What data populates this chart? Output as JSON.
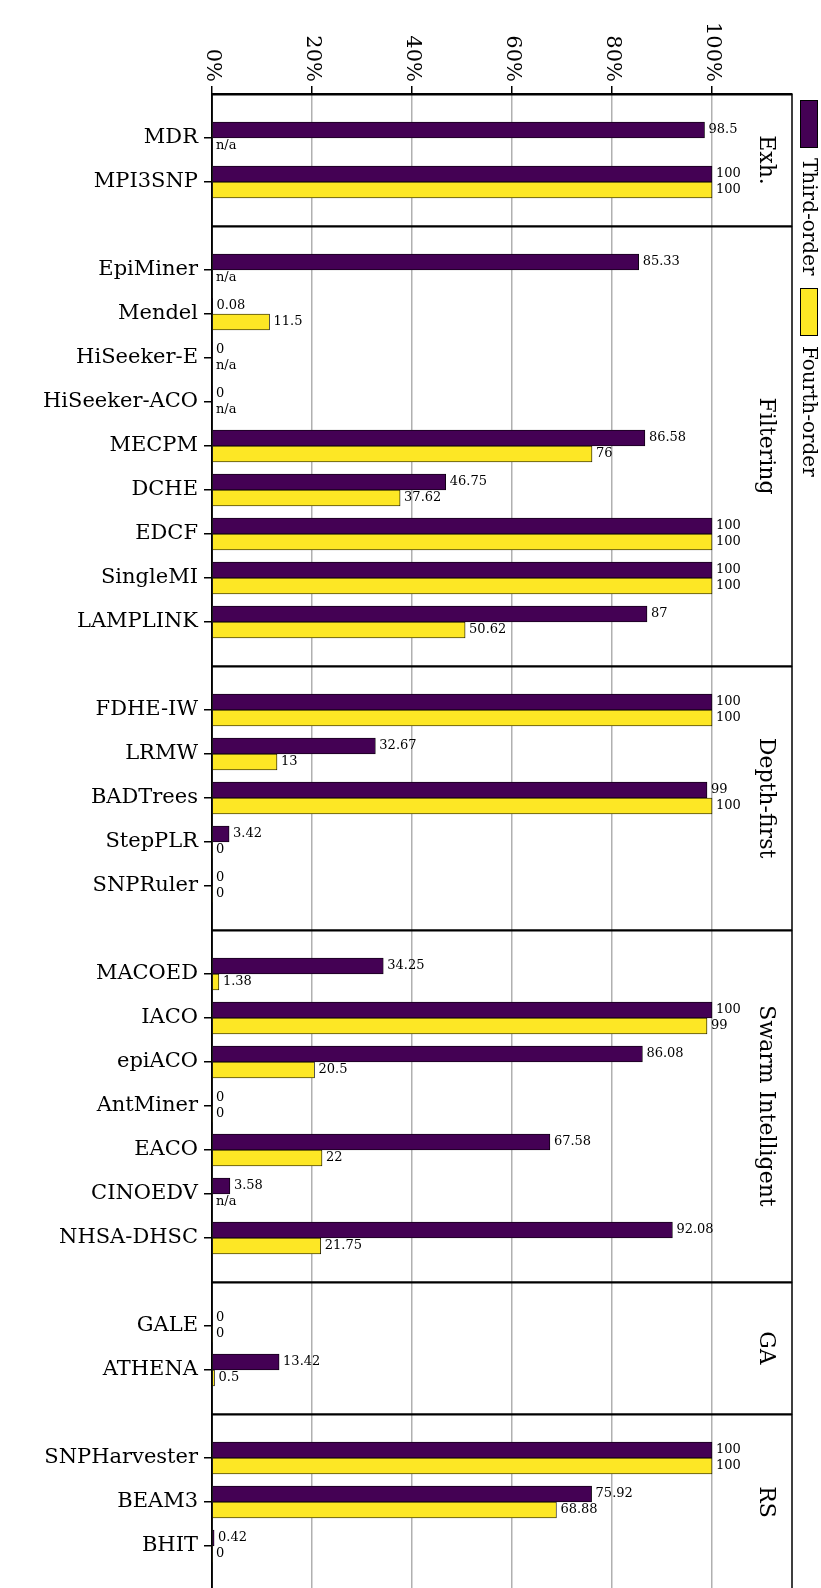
{
  "chart_data": [
    {
      "type": "bar",
      "orientation": "horizontal",
      "title": "Exh.",
      "categories": [
        "MDR",
        "MPI3SNP"
      ],
      "series": [
        {
          "name": "Third-order",
          "color": "#440154",
          "values": [
            98.5,
            100
          ],
          "value_labels": [
            "98.5",
            "100"
          ]
        },
        {
          "name": "Fourth-order",
          "color": "#fde725",
          "values": [
            null,
            100
          ],
          "value_labels": [
            "n/a",
            "100"
          ]
        }
      ],
      "xlim": [
        0,
        116
      ],
      "xticks": [
        {
          "value": 0,
          "label": "0%"
        },
        {
          "value": 20,
          "label": "20%"
        },
        {
          "value": 40,
          "label": "40%"
        },
        {
          "value": 60,
          "label": "60%"
        },
        {
          "value": 80,
          "label": "80%"
        },
        {
          "value": 100,
          "label": "100%"
        }
      ],
      "grid": "x",
      "legend": "right"
    },
    {
      "type": "bar",
      "orientation": "horizontal",
      "title": "Filtering",
      "categories": [
        "EpiMiner",
        "Mendel",
        "HiSeeker-E",
        "HiSeeker-ACO",
        "MECPM",
        "DCHE",
        "EDCF",
        "SingleMI",
        "LAMPLINK"
      ],
      "series": [
        {
          "color": "#440154",
          "values": [
            85.33,
            0.08,
            0,
            0,
            86.58,
            46.75,
            100,
            100,
            87
          ],
          "value_labels": [
            "85.33",
            "0.08",
            "0",
            "0",
            "86.58",
            "46.75",
            "100",
            "100",
            "87"
          ]
        },
        {
          "color": "#fde725",
          "values": [
            null,
            11.5,
            null,
            null,
            76,
            37.62,
            100,
            100,
            50.62
          ],
          "value_labels": [
            "n/a",
            "11.5",
            "n/a",
            "n/a",
            "76",
            "37.62",
            "100",
            "100",
            "50.62"
          ]
        }
      ],
      "xlim": [
        0,
        116
      ],
      "xticks": [
        {
          "value": 0,
          "label": null
        },
        {
          "value": 20,
          "label": null
        },
        {
          "value": 40,
          "label": null
        },
        {
          "value": 60,
          "label": null
        },
        {
          "value": 80,
          "label": null
        },
        {
          "value": 100,
          "label": null
        }
      ],
      "grid": "x",
      "tick_labels": "y"
    },
    {
      "type": "bar",
      "orientation": "horizontal",
      "title": "Depth-first",
      "categories": [
        "FDHE-IW",
        "LRMW",
        "BADTrees",
        "StepPLR",
        "SNPRuler"
      ],
      "series": [
        {
          "color": "#440154",
          "values": [
            100,
            32.67,
            99,
            3.42,
            0
          ],
          "value_labels": [
            "100",
            "32.67",
            "99",
            "3.42",
            "0"
          ]
        },
        {
          "color": "#fde725",
          "values": [
            100,
            13,
            100,
            0,
            0
          ],
          "value_labels": [
            "100",
            "13",
            "100",
            "0",
            "0"
          ]
        }
      ],
      "xlim": [
        0,
        116
      ],
      "xticks": [
        {
          "value": 0,
          "label": null
        },
        {
          "value": 20,
          "label": null
        },
        {
          "value": 40,
          "label": null
        },
        {
          "value": 60,
          "label": null
        },
        {
          "value": 80,
          "label": null
        },
        {
          "value": 100,
          "label": null
        }
      ],
      "grid": "x",
      "tick_labels": "y"
    },
    {
      "type": "bar",
      "orientation": "horizontal",
      "title": "Swarm Intelligent",
      "categories": [
        "MACOED",
        "IACO",
        "epiACO",
        "AntMiner",
        "EACO",
        "CINOEDV",
        "NHSA-DHSC"
      ],
      "series": [
        {
          "color": "#440154",
          "values": [
            34.25,
            100,
            86.08,
            0,
            67.58,
            3.58,
            92.08
          ],
          "value_labels": [
            "34.25",
            "100",
            "86.08",
            "0",
            "67.58",
            "3.58",
            "92.08"
          ]
        },
        {
          "color": "#fde725",
          "values": [
            1.38,
            99,
            20.5,
            0,
            22,
            null,
            21.75
          ],
          "value_labels": [
            "1.38",
            "99",
            "20.5",
            "0",
            "22",
            "n/a",
            "21.75"
          ]
        }
      ],
      "xlim": [
        0,
        116
      ],
      "xticks": [
        {
          "value": 0,
          "label": null
        },
        {
          "value": 20,
          "label": null
        },
        {
          "value": 40,
          "label": null
        },
        {
          "value": 60,
          "label": null
        },
        {
          "value": 80,
          "label": null
        },
        {
          "value": 100,
          "label": null
        }
      ],
      "grid": "x",
      "tick_labels": "y"
    },
    {
      "type": "bar",
      "orientation": "horizontal",
      "title": "GA",
      "categories": [
        "GALE",
        "ATHENA"
      ],
      "series": [
        {
          "color": "#440154",
          "values": [
            0,
            13.42
          ],
          "value_labels": [
            "0",
            "13.42"
          ]
        },
        {
          "color": "#fde725",
          "values": [
            0,
            0.5
          ],
          "value_labels": [
            "0",
            "0.5"
          ]
        }
      ],
      "xlim": [
        0,
        116
      ],
      "xticks": [
        {
          "value": 0,
          "label": null
        },
        {
          "value": 20,
          "label": null
        },
        {
          "value": 40,
          "label": null
        },
        {
          "value": 60,
          "label": null
        },
        {
          "value": 80,
          "label": null
        },
        {
          "value": 100,
          "label": null
        }
      ],
      "grid": "x",
      "tick_labels": "y"
    },
    {
      "type": "bar",
      "orientation": "horizontal",
      "title": "RS",
      "categories": [
        "SNPHarvester",
        "BEAM3",
        "BHIT"
      ],
      "series": [
        {
          "color": "#440154",
          "values": [
            100,
            75.92,
            0.42
          ],
          "value_labels": [
            "100",
            "75.92",
            "0.42"
          ]
        },
        {
          "color": "#fde725",
          "values": [
            100,
            68.88,
            0
          ],
          "value_labels": [
            "100",
            "68.88",
            "0"
          ]
        }
      ],
      "xlim": [
        0,
        116
      ],
      "xticks": [
        {
          "value": 0,
          "label": null
        },
        {
          "value": 20,
          "label": null
        },
        {
          "value": 40,
          "label": null
        },
        {
          "value": 60,
          "label": null
        },
        {
          "value": 80,
          "label": null
        },
        {
          "value": 100,
          "label": null
        }
      ],
      "grid": "x",
      "tick_labels": "y"
    }
  ]
}
